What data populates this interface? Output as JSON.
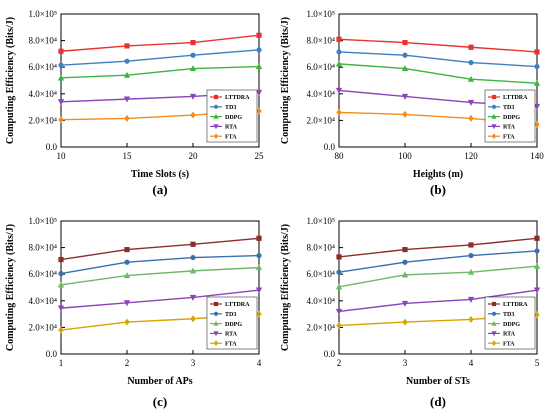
{
  "chart_data": [
    {
      "type": "line",
      "caption": "(a)",
      "xlabel": "Time Slots (s)",
      "ylabel": "Computing Efficiency (Bits/J)",
      "x": [
        10,
        15,
        20,
        25
      ],
      "xticks": [
        "10",
        "15",
        "20",
        "25"
      ],
      "xlim": [
        10,
        25
      ],
      "ylim": [
        0,
        100000
      ],
      "yticks": [
        "0.0",
        "2.0×10⁴",
        "4.0×10⁴",
        "6.0×10⁴",
        "8.0×10⁴",
        "1.0×10⁵"
      ],
      "grid": false,
      "legend_position": "bottom-right",
      "series": [
        {
          "name": "LTTDRA",
          "color": "#e8322f",
          "marker": "square",
          "values": [
            72000,
            76000,
            78500,
            84000
          ]
        },
        {
          "name": "TD3",
          "color": "#3f7fc0",
          "marker": "circle",
          "values": [
            61500,
            64500,
            69000,
            73000
          ]
        },
        {
          "name": "DDPG",
          "color": "#3db340",
          "marker": "triangle-up",
          "values": [
            52000,
            54000,
            59000,
            60500
          ]
        },
        {
          "name": "RTA",
          "color": "#8b45b8",
          "marker": "triangle-down",
          "values": [
            34000,
            36000,
            38000,
            41000
          ]
        },
        {
          "name": "FTA",
          "color": "#f28c1c",
          "marker": "diamond",
          "values": [
            20500,
            21500,
            24000,
            27000
          ]
        }
      ]
    },
    {
      "type": "line",
      "caption": "(b)",
      "xlabel": "Heights (m)",
      "ylabel": "Computing Efficiency (Bits/J)",
      "x": [
        80,
        100,
        120,
        140
      ],
      "xticks": [
        "80",
        "100",
        "120",
        "140"
      ],
      "xlim": [
        80,
        140
      ],
      "ylim": [
        0,
        100000
      ],
      "yticks": [
        "0.0",
        "2.0×10⁴",
        "4.0×10⁴",
        "6.0×10⁴",
        "8.0×10⁴",
        "1.0×10⁵"
      ],
      "grid": false,
      "legend_position": "bottom-right",
      "series": [
        {
          "name": "LTTDRA",
          "color": "#e8322f",
          "marker": "square",
          "values": [
            81000,
            78500,
            75000,
            71500
          ]
        },
        {
          "name": "TD3",
          "color": "#3f7fc0",
          "marker": "circle",
          "values": [
            71500,
            69000,
            63500,
            60500
          ]
        },
        {
          "name": "DDPG",
          "color": "#3db340",
          "marker": "triangle-up",
          "values": [
            62500,
            59000,
            51000,
            48000
          ]
        },
        {
          "name": "RTA",
          "color": "#8b45b8",
          "marker": "triangle-down",
          "values": [
            42500,
            38000,
            33500,
            30500
          ]
        },
        {
          "name": "FTA",
          "color": "#f28c1c",
          "marker": "diamond",
          "values": [
            26000,
            24500,
            21500,
            17000
          ]
        }
      ]
    },
    {
      "type": "line",
      "caption": "(c)",
      "xlabel": "Number of APs",
      "ylabel": "Computing Efficiency (Bits/J)",
      "x": [
        1,
        2,
        3,
        4
      ],
      "xticks": [
        "1",
        "2",
        "3",
        "4"
      ],
      "xlim": [
        1,
        4
      ],
      "ylim": [
        0,
        100000
      ],
      "yticks": [
        "0.0",
        "2.0×10⁴",
        "4.0×10⁴",
        "6.0×10⁴",
        "8.0×10⁴",
        "1.0×10⁵"
      ],
      "grid": false,
      "legend_position": "bottom-right",
      "series": [
        {
          "name": "LTTDRA",
          "color": "#8b2e2a",
          "marker": "square",
          "values": [
            71000,
            78500,
            82500,
            87000
          ]
        },
        {
          "name": "TD3",
          "color": "#3a6fb0",
          "marker": "circle",
          "values": [
            60500,
            69000,
            72500,
            74000
          ]
        },
        {
          "name": "DDPG",
          "color": "#6fb86a",
          "marker": "triangle-up",
          "values": [
            52000,
            59000,
            62500,
            65000
          ]
        },
        {
          "name": "RTA",
          "color": "#8b45b8",
          "marker": "triangle-down",
          "values": [
            34500,
            38500,
            42500,
            48000
          ]
        },
        {
          "name": "FTA",
          "color": "#d9a400",
          "marker": "diamond",
          "values": [
            18000,
            24000,
            26500,
            30000
          ]
        }
      ]
    },
    {
      "type": "line",
      "caption": "(d)",
      "xlabel": "Number of STs",
      "ylabel": "Computing Efficiency (Bits/J)",
      "x": [
        2,
        3,
        4,
        5
      ],
      "xticks": [
        "2",
        "3",
        "4",
        "5"
      ],
      "xlim": [
        2,
        5
      ],
      "ylim": [
        0,
        100000
      ],
      "yticks": [
        "0.0",
        "2.0×10⁴",
        "4.0×10⁴",
        "6.0×10⁴",
        "8.0×10⁴",
        "1.0×10⁵"
      ],
      "grid": false,
      "legend_position": "bottom-right",
      "series": [
        {
          "name": "LTTDRA",
          "color": "#8b2e2a",
          "marker": "square",
          "values": [
            73000,
            78500,
            82000,
            87000
          ]
        },
        {
          "name": "TD3",
          "color": "#3a6fb0",
          "marker": "circle",
          "values": [
            61500,
            69000,
            74000,
            77500
          ]
        },
        {
          "name": "DDPG",
          "color": "#6fb86a",
          "marker": "triangle-up",
          "values": [
            50500,
            59500,
            61500,
            66000
          ]
        },
        {
          "name": "RTA",
          "color": "#8b45b8",
          "marker": "triangle-down",
          "values": [
            32000,
            38000,
            41000,
            48000
          ]
        },
        {
          "name": "FTA",
          "color": "#d9a400",
          "marker": "diamond",
          "values": [
            21500,
            24000,
            26000,
            29500
          ]
        }
      ]
    }
  ]
}
